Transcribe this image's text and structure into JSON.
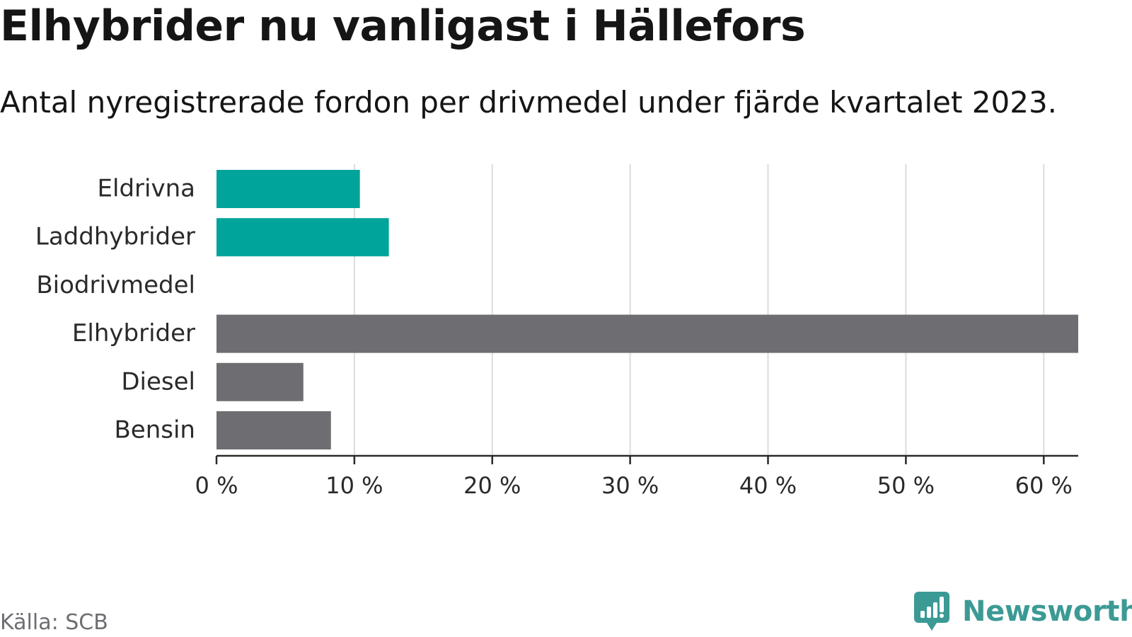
{
  "header": {
    "title": "Elhybrider nu vanligast i Hällefors",
    "subtitle": "Antal nyregistrerade fordon per drivmedel under fjärde kvartalet 2023."
  },
  "chart_data": {
    "type": "bar",
    "orientation": "horizontal",
    "categories": [
      "Eldrivna",
      "Laddhybrider",
      "Biodrivmedel",
      "Elhybrider",
      "Diesel",
      "Bensin"
    ],
    "values": [
      10.4,
      12.5,
      0,
      62.5,
      6.3,
      8.3
    ],
    "bar_colors": [
      "#00a49a",
      "#00a49a",
      "#6e6d72",
      "#6e6d72",
      "#6e6d72",
      "#6e6d72"
    ],
    "x_ticks": [
      0,
      10,
      20,
      30,
      40,
      50,
      60
    ],
    "x_tick_labels": [
      "0 %",
      "10 %",
      "20 %",
      "30 %",
      "40 %",
      "50 %",
      "60 %"
    ],
    "xlim": [
      0,
      62.5
    ],
    "grid": "vertical",
    "title": "Elhybrider nu vanligast i Hällefors",
    "subtitle": "Antal nyregistrerade fordon per drivmedel under fjärde kvartalet 2023."
  },
  "footer": {
    "source": "Källa: SCB",
    "brand": "Newsworthy",
    "brand_color": "#3c9a95",
    "brand_icon": "newsworthy-logo-icon"
  }
}
